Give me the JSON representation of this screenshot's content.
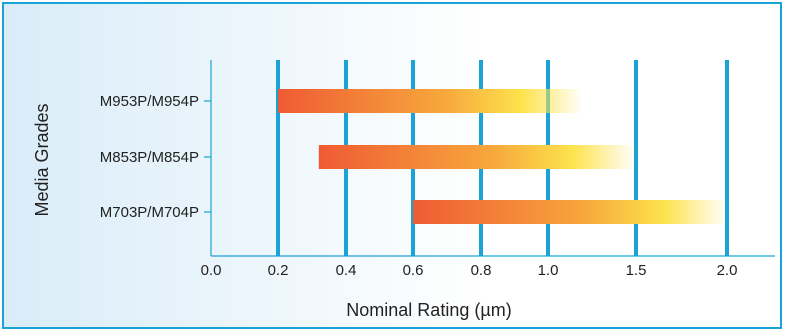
{
  "chart_data": {
    "type": "bar",
    "xlabel": "Nominal Rating (µm)",
    "ylabel": "Media Grades",
    "x_ticks": [
      "0.0",
      "0.2",
      "0.4",
      "0.6",
      "0.8",
      "1.0",
      "1.5",
      "2.0"
    ],
    "categories": [
      "M953P/M954P",
      "M853P/M854P",
      "M703P/M704P"
    ],
    "ranges": [
      {
        "start": 0.2,
        "end": 1.2
      },
      {
        "start": 0.32,
        "end": 1.5
      },
      {
        "start": 0.6,
        "end": 2.0
      }
    ],
    "grid": true,
    "colors": {
      "bar_start": "#ef5b34",
      "bar_mid": "#f7a83c",
      "bar_end": "#fde34c",
      "grid": "#1aa3d6",
      "frame": "#1aa3d6"
    }
  }
}
